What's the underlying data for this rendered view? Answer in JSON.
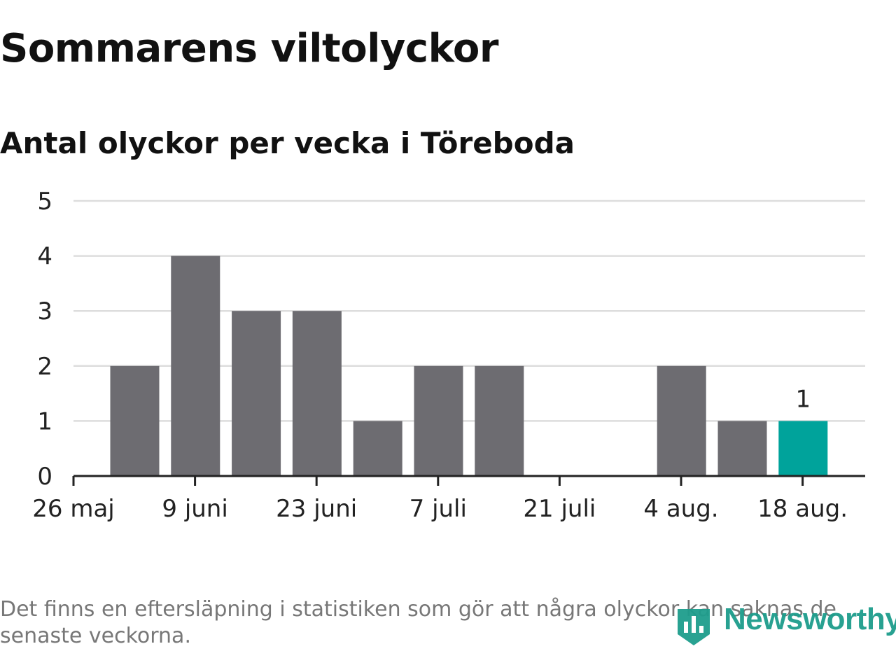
{
  "title": "Sommarens viltolyckor",
  "subtitle": "Antal olyckor per vecka i Töreboda",
  "note": "Det finns en eftersläpning i statistiken som gör att några olyckor kan saknas de senaste veckorna.",
  "logo": {
    "text": "Newsworthy",
    "icon": "bar-chart-badge-icon",
    "color": "#1d9d8c"
  },
  "colors": {
    "bar": "#6d6c71",
    "highlight": "#00a39b",
    "grid": "#dddddd",
    "axis": "#222222",
    "text": "#222222"
  },
  "chart_data": {
    "type": "bar",
    "title": "Sommarens viltolyckor",
    "subtitle": "Antal olyckor per vecka i Töreboda",
    "xlabel": "",
    "ylabel": "",
    "ylim": [
      0,
      5
    ],
    "yticks": [
      "0",
      "1",
      "2",
      "3",
      "4",
      "5"
    ],
    "grid": true,
    "x_tick_labels": [
      "26 maj",
      "9 juni",
      "23 juni",
      "7 juli",
      "21 juli",
      "4 aug.",
      "18 aug."
    ],
    "categories": [
      "2019-06-02",
      "2019-06-09",
      "2019-06-16",
      "2019-06-23",
      "2019-06-30",
      "2019-07-07",
      "2019-07-14",
      "2019-07-21",
      "2019-07-28",
      "2019-08-04",
      "2019-08-11",
      "2019-08-18"
    ],
    "values": [
      2,
      4,
      3,
      3,
      1,
      2,
      2,
      0,
      0,
      2,
      1,
      1
    ],
    "highlight_index": 11,
    "data_labels": [
      {
        "index": 11,
        "text": "1"
      }
    ]
  }
}
